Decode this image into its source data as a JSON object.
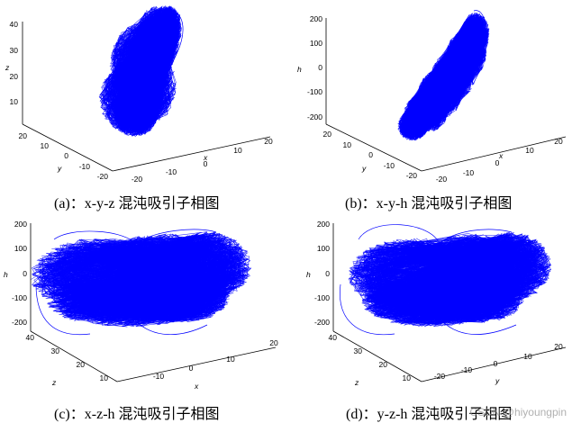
{
  "colors": {
    "trajectory": "#0000ff",
    "axis": "#000000",
    "background": "#ffffff"
  },
  "watermark": "CSDN @hiyoungpin",
  "chart_data": [
    {
      "type": "line",
      "projection": "3d",
      "caption": "(a)：x-y-z 混沌吸引子相图",
      "axes": {
        "x": {
          "label": "x",
          "ticks": [
            "-20",
            "-10",
            "0",
            "10",
            "20"
          ],
          "range": [
            -20,
            20
          ]
        },
        "y": {
          "label": "y",
          "ticks": [
            "-20",
            "-10",
            "0",
            "10",
            "20"
          ],
          "range": [
            -25,
            25
          ]
        },
        "z": {
          "label": "z",
          "ticks": [
            "10",
            "20",
            "30",
            "40"
          ],
          "range": [
            0,
            45
          ]
        }
      }
    },
    {
      "type": "line",
      "projection": "3d",
      "caption": "(b)：x-y-h 混沌吸引子相图",
      "axes": {
        "x": {
          "label": "x",
          "ticks": [
            "-20",
            "-10",
            "0",
            "10",
            "20"
          ],
          "range": [
            -20,
            20
          ]
        },
        "y": {
          "label": "y",
          "ticks": [
            "-20",
            "-10",
            "0",
            "10",
            "20"
          ],
          "range": [
            -25,
            25
          ]
        },
        "h": {
          "label": "h",
          "ticks": [
            "-200",
            "-100",
            "0",
            "100",
            "200"
          ],
          "range": [
            -200,
            200
          ]
        }
      }
    },
    {
      "type": "line",
      "projection": "3d",
      "caption": "(c)：x-z-h 混沌吸引子相图",
      "axes": {
        "x": {
          "label": "x",
          "ticks": [
            "-10",
            "0",
            "10",
            "20"
          ],
          "range": [
            -20,
            20
          ]
        },
        "z": {
          "label": "z",
          "ticks": [
            "10",
            "20",
            "30",
            "40"
          ],
          "range": [
            0,
            45
          ]
        },
        "h": {
          "label": "h",
          "ticks": [
            "-200",
            "-100",
            "0",
            "100",
            "200"
          ],
          "range": [
            -200,
            200
          ]
        }
      }
    },
    {
      "type": "line",
      "projection": "3d",
      "caption": "(d)：y-z-h 混沌吸引子相图",
      "axes": {
        "y": {
          "label": "y",
          "ticks": [
            "-20",
            "-10",
            "0",
            "10",
            "20"
          ],
          "range": [
            -25,
            25
          ]
        },
        "z": {
          "label": "z",
          "ticks": [
            "10",
            "20",
            "30",
            "40"
          ],
          "range": [
            0,
            45
          ]
        },
        "h": {
          "label": "h",
          "ticks": [
            "-200",
            "-100",
            "0",
            "100",
            "200"
          ],
          "range": [
            -200,
            200
          ]
        }
      }
    }
  ]
}
